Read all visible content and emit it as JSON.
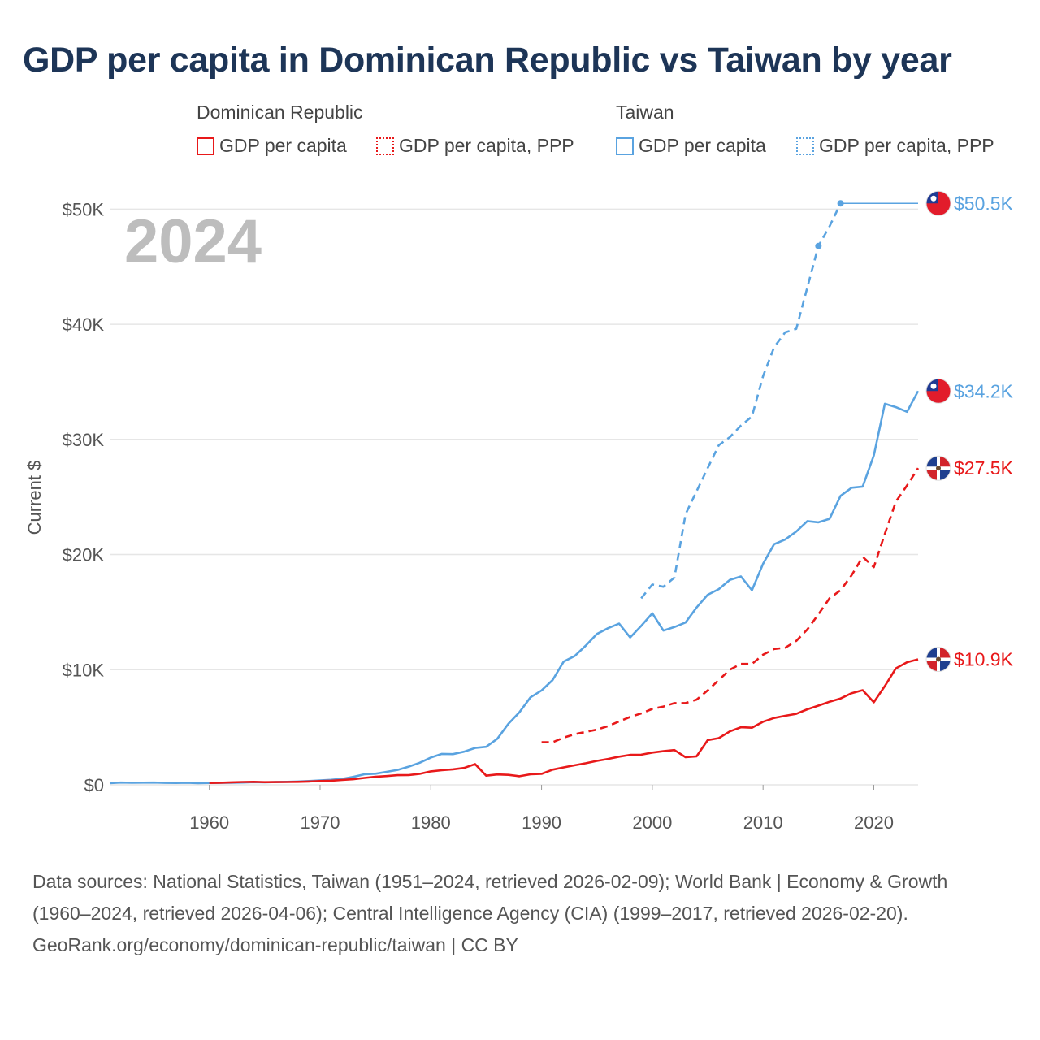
{
  "title": "GDP per capita in Dominican Republic vs Taiwan by year",
  "legend": {
    "groups": [
      {
        "name": "Dominican Republic",
        "items": [
          {
            "label": "GDP per capita",
            "color": "#e8191a",
            "style": "solid"
          },
          {
            "label": "GDP per capita, PPP",
            "color": "#e8191a",
            "style": "dotted"
          }
        ]
      },
      {
        "name": "Taiwan",
        "items": [
          {
            "label": "GDP per capita",
            "color": "#5aa3e0",
            "style": "solid"
          },
          {
            "label": "GDP per capita, PPP",
            "color": "#5aa3e0",
            "style": "dotted"
          }
        ]
      }
    ]
  },
  "year_label": "2024",
  "footer": {
    "sources": "Data sources: National Statistics, Taiwan (1951–2024, retrieved 2026-02-09); World Bank | Economy & Growth (1960–2024, retrieved 2026-04-06); Central Intelligence Agency (CIA) (1999–2017, retrieved 2026-02-20).",
    "link": "GeoRank.org/economy/dominican-republic/taiwan | CC BY"
  },
  "chart_data": {
    "type": "line",
    "ylabel": "Current $",
    "xlabel": "",
    "xlim": [
      1951,
      2024
    ],
    "ylim": [
      0,
      52000
    ],
    "x_ticks": [
      1960,
      1970,
      1980,
      1990,
      2000,
      2010,
      2020
    ],
    "y_ticks": [
      0,
      10000,
      20000,
      30000,
      40000,
      50000
    ],
    "y_tick_labels": [
      "$0",
      "$10K",
      "$20K",
      "$30K",
      "$40K",
      "$50K"
    ],
    "grid": true,
    "series": [
      {
        "name": "Taiwan GDP per capita PPP",
        "country": "Taiwan",
        "metric": "GDP per capita, PPP",
        "color": "#5aa3e0",
        "dash": "dashed",
        "end_label": "$50.5K",
        "flag": "taiwan",
        "points": [
          [
            1999,
            16200
          ],
          [
            2000,
            17400
          ],
          [
            2001,
            17200
          ],
          [
            2002,
            18000
          ],
          [
            2003,
            23500
          ],
          [
            2004,
            25500
          ],
          [
            2005,
            27500
          ],
          [
            2006,
            29500
          ],
          [
            2007,
            30200
          ],
          [
            2008,
            31200
          ],
          [
            2009,
            32000
          ],
          [
            2010,
            35500
          ],
          [
            2011,
            38000
          ],
          [
            2012,
            39300
          ],
          [
            2013,
            39600
          ],
          [
            2014,
            43200
          ],
          [
            2015,
            46800
          ],
          [
            2016,
            48500
          ],
          [
            2017,
            50500
          ],
          [
            2024,
            50500
          ]
        ],
        "markers": [
          [
            2015,
            46800
          ],
          [
            2017,
            50500
          ]
        ],
        "carry_forward_from": 2017
      },
      {
        "name": "Taiwan GDP per capita",
        "country": "Taiwan",
        "metric": "GDP per capita",
        "color": "#5aa3e0",
        "dash": "solid",
        "end_label": "$34.2K",
        "flag": "taiwan",
        "points": [
          [
            1951,
            150
          ],
          [
            1952,
            200
          ],
          [
            1953,
            180
          ],
          [
            1954,
            190
          ],
          [
            1955,
            200
          ],
          [
            1956,
            170
          ],
          [
            1957,
            160
          ],
          [
            1958,
            180
          ],
          [
            1959,
            150
          ],
          [
            1960,
            160
          ],
          [
            1961,
            170
          ],
          [
            1962,
            180
          ],
          [
            1963,
            200
          ],
          [
            1964,
            230
          ],
          [
            1965,
            220
          ],
          [
            1966,
            240
          ],
          [
            1967,
            260
          ],
          [
            1968,
            290
          ],
          [
            1969,
            330
          ],
          [
            1970,
            390
          ],
          [
            1971,
            440
          ],
          [
            1972,
            520
          ],
          [
            1973,
            690
          ],
          [
            1974,
            920
          ],
          [
            1975,
            970
          ],
          [
            1976,
            1130
          ],
          [
            1977,
            1300
          ],
          [
            1978,
            1580
          ],
          [
            1979,
            1920
          ],
          [
            1980,
            2370
          ],
          [
            1981,
            2690
          ],
          [
            1982,
            2670
          ],
          [
            1983,
            2880
          ],
          [
            1984,
            3200
          ],
          [
            1985,
            3300
          ],
          [
            1986,
            4000
          ],
          [
            1987,
            5300
          ],
          [
            1988,
            6300
          ],
          [
            1989,
            7600
          ],
          [
            1990,
            8200
          ],
          [
            1991,
            9100
          ],
          [
            1992,
            10700
          ],
          [
            1993,
            11200
          ],
          [
            1994,
            12100
          ],
          [
            1995,
            13100
          ],
          [
            1996,
            13600
          ],
          [
            1997,
            14000
          ],
          [
            1998,
            12800
          ],
          [
            1999,
            13800
          ],
          [
            2000,
            14900
          ],
          [
            2001,
            13400
          ],
          [
            2002,
            13700
          ],
          [
            2003,
            14100
          ],
          [
            2004,
            15400
          ],
          [
            2005,
            16500
          ],
          [
            2006,
            17000
          ],
          [
            2007,
            17800
          ],
          [
            2008,
            18100
          ],
          [
            2009,
            16900
          ],
          [
            2010,
            19200
          ],
          [
            2011,
            20900
          ],
          [
            2012,
            21300
          ],
          [
            2013,
            22000
          ],
          [
            2014,
            22900
          ],
          [
            2015,
            22800
          ],
          [
            2016,
            23100
          ],
          [
            2017,
            25100
          ],
          [
            2018,
            25800
          ],
          [
            2019,
            25900
          ],
          [
            2020,
            28600
          ],
          [
            2021,
            33100
          ],
          [
            2022,
            32800
          ],
          [
            2023,
            32400
          ],
          [
            2024,
            34200
          ]
        ]
      },
      {
        "name": "Dominican Republic GDP per capita PPP",
        "country": "Dominican Republic",
        "metric": "GDP per capita, PPP",
        "color": "#e8191a",
        "dash": "dashed",
        "end_label": "$27.5K",
        "flag": "dominican-republic",
        "points": [
          [
            1990,
            3700
          ],
          [
            1991,
            3700
          ],
          [
            1992,
            4100
          ],
          [
            1993,
            4400
          ],
          [
            1994,
            4600
          ],
          [
            1995,
            4800
          ],
          [
            1996,
            5100
          ],
          [
            1997,
            5500
          ],
          [
            1998,
            5900
          ],
          [
            1999,
            6200
          ],
          [
            2000,
            6600
          ],
          [
            2001,
            6800
          ],
          [
            2002,
            7100
          ],
          [
            2003,
            7100
          ],
          [
            2004,
            7400
          ],
          [
            2005,
            8200
          ],
          [
            2006,
            9100
          ],
          [
            2007,
            10000
          ],
          [
            2008,
            10500
          ],
          [
            2009,
            10500
          ],
          [
            2010,
            11300
          ],
          [
            2011,
            11800
          ],
          [
            2012,
            11900
          ],
          [
            2013,
            12500
          ],
          [
            2014,
            13500
          ],
          [
            2015,
            14800
          ],
          [
            2016,
            16200
          ],
          [
            2017,
            16900
          ],
          [
            2018,
            18200
          ],
          [
            2019,
            19800
          ],
          [
            2020,
            18900
          ],
          [
            2021,
            21800
          ],
          [
            2022,
            24600
          ],
          [
            2023,
            26000
          ],
          [
            2024,
            27500
          ]
        ]
      },
      {
        "name": "Dominican Republic GDP per capita",
        "country": "Dominican Republic",
        "metric": "GDP per capita",
        "color": "#e8191a",
        "dash": "solid",
        "end_label": "$10.9K",
        "flag": "dominican-republic",
        "points": [
          [
            1960,
            160
          ],
          [
            1961,
            180
          ],
          [
            1962,
            220
          ],
          [
            1963,
            250
          ],
          [
            1964,
            260
          ],
          [
            1965,
            230
          ],
          [
            1966,
            240
          ],
          [
            1967,
            250
          ],
          [
            1968,
            260
          ],
          [
            1969,
            290
          ],
          [
            1970,
            330
          ],
          [
            1971,
            360
          ],
          [
            1972,
            420
          ],
          [
            1973,
            490
          ],
          [
            1974,
            600
          ],
          [
            1975,
            700
          ],
          [
            1976,
            760
          ],
          [
            1977,
            840
          ],
          [
            1978,
            850
          ],
          [
            1979,
            950
          ],
          [
            1980,
            1170
          ],
          [
            1981,
            1270
          ],
          [
            1982,
            1350
          ],
          [
            1983,
            1470
          ],
          [
            1984,
            1800
          ],
          [
            1985,
            800
          ],
          [
            1986,
            900
          ],
          [
            1987,
            870
          ],
          [
            1988,
            750
          ],
          [
            1989,
            920
          ],
          [
            1990,
            950
          ],
          [
            1991,
            1320
          ],
          [
            1992,
            1520
          ],
          [
            1993,
            1700
          ],
          [
            1994,
            1880
          ],
          [
            1995,
            2080
          ],
          [
            1996,
            2250
          ],
          [
            1997,
            2450
          ],
          [
            1998,
            2600
          ],
          [
            1999,
            2620
          ],
          [
            2000,
            2800
          ],
          [
            2001,
            2920
          ],
          [
            2002,
            3020
          ],
          [
            2003,
            2400
          ],
          [
            2004,
            2480
          ],
          [
            2005,
            3880
          ],
          [
            2006,
            4060
          ],
          [
            2007,
            4640
          ],
          [
            2008,
            5000
          ],
          [
            2009,
            4960
          ],
          [
            2010,
            5480
          ],
          [
            2011,
            5810
          ],
          [
            2012,
            6000
          ],
          [
            2013,
            6170
          ],
          [
            2014,
            6560
          ],
          [
            2015,
            6880
          ],
          [
            2016,
            7220
          ],
          [
            2017,
            7500
          ],
          [
            2018,
            7960
          ],
          [
            2019,
            8220
          ],
          [
            2020,
            7170
          ],
          [
            2021,
            8580
          ],
          [
            2022,
            10120
          ],
          [
            2023,
            10650
          ],
          [
            2024,
            10900
          ]
        ]
      }
    ]
  }
}
